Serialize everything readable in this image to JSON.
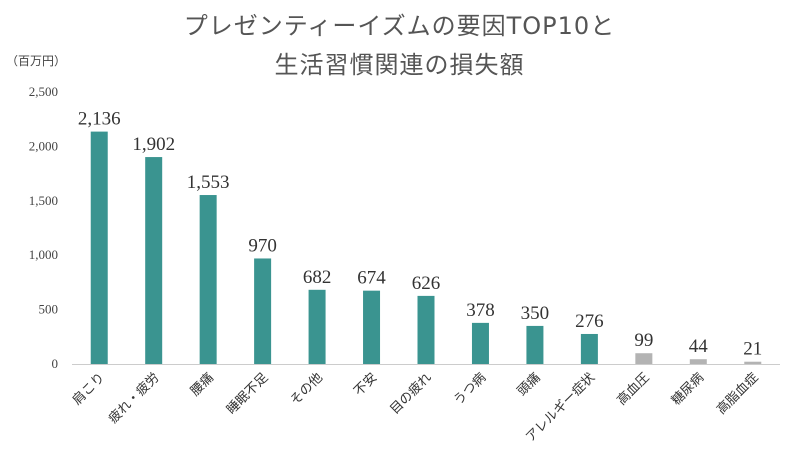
{
  "chart_data": {
    "type": "bar",
    "title_lines": [
      "プレゼンティーイズムの要因TOP10と",
      "生活習慣関連の損失額"
    ],
    "unit": "（百万円）",
    "categories": [
      "肩こり",
      "疲れ・疲労",
      "腰痛",
      "睡眠不足",
      "その他",
      "不安",
      "目の疲れ",
      "うつ病",
      "頭痛",
      "アレルギー症状",
      "高血圧",
      "糖尿病",
      "高脂血症"
    ],
    "values": [
      2136,
      1902,
      1553,
      970,
      682,
      674,
      626,
      378,
      350,
      276,
      99,
      44,
      21
    ],
    "data_labels": [
      "2,136",
      "1,902",
      "1,553",
      "970",
      "682",
      "674",
      "626",
      "378",
      "350",
      "276",
      "99",
      "44",
      "21"
    ],
    "yticks": [
      0,
      500,
      1000,
      1500,
      2000,
      2500
    ],
    "ytick_labels": [
      "0",
      "500",
      "1,000",
      "1,500",
      "2,000",
      "2,500"
    ],
    "ylim": [
      0,
      2500
    ],
    "grid": false,
    "colors": {
      "top10": "#3a9490",
      "lifestyle": "#b3b3b3",
      "top10_count": 10
    }
  }
}
